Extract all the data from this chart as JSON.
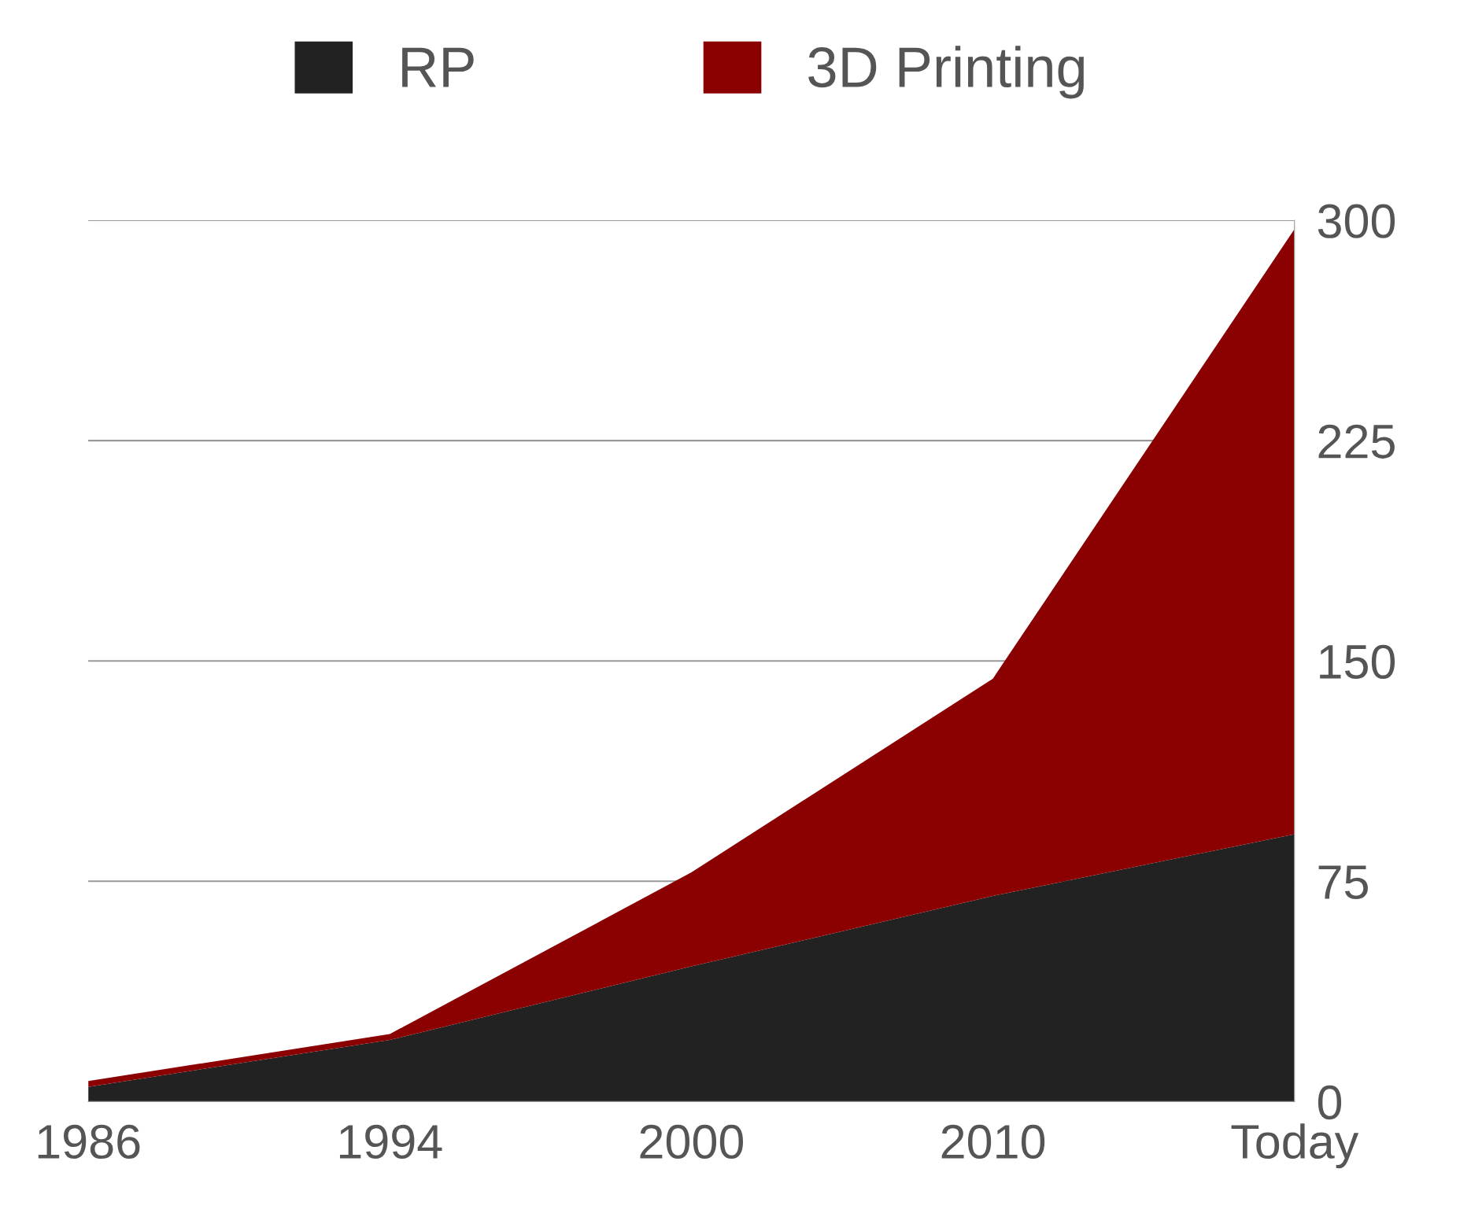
{
  "chart_data": {
    "type": "area",
    "stacked": true,
    "categories": [
      "1986",
      "1994",
      "2000",
      "2010",
      "Today"
    ],
    "series": [
      {
        "name": "RP",
        "color": "#222222",
        "values": [
          5,
          21,
          46,
          70,
          91
        ]
      },
      {
        "name": "3D Printing",
        "color": "#8b0000",
        "values": [
          2,
          2,
          32,
          74,
          206
        ]
      }
    ],
    "ylim": [
      0,
      300
    ],
    "yticks": [
      0,
      75,
      150,
      225,
      300
    ],
    "grid": "y",
    "legend": "top"
  }
}
